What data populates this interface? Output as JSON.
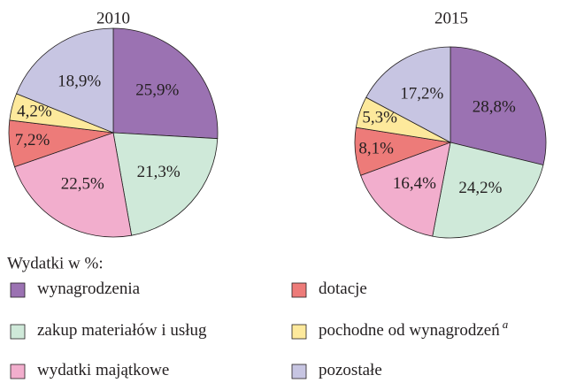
{
  "chart_data": [
    {
      "type": "pie",
      "title": "2010",
      "categories": [
        "wynagrodzenia",
        "zakup materiałów i usług",
        "wydatki majątkowe",
        "dotacje",
        "pochodne od wynagrodzeń",
        "pozostałe"
      ],
      "category_marks": [
        null,
        null,
        null,
        null,
        "a",
        null
      ],
      "values": [
        25.9,
        21.3,
        22.5,
        7.2,
        4.2,
        18.9
      ],
      "value_labels": [
        "25,9%",
        "21,3%",
        "22,5%",
        "7,2%",
        "4,2%",
        "18,9%"
      ],
      "colors": [
        "#9b72b2",
        "#cfe9d9",
        "#f2aecd",
        "#ed7b79",
        "#fde99c",
        "#c7c5e2"
      ],
      "legend_title": "Wydatki w %:"
    },
    {
      "type": "pie",
      "title": "2015",
      "categories": [
        "wynagrodzenia",
        "zakup materiałów i usług",
        "wydatki majątkowe",
        "dotacje",
        "pochodne od wynagrodzeń",
        "pozostałe"
      ],
      "values": [
        28.8,
        24.2,
        16.4,
        8.1,
        5.3,
        17.2
      ],
      "value_labels": [
        "28,8%",
        "24,2%",
        "16,4%",
        "8,1%",
        "5,3%",
        "17,2%"
      ],
      "colors": [
        "#9b72b2",
        "#cfe9d9",
        "#f2aecd",
        "#ed7b79",
        "#fde99c",
        "#c7c5e2"
      ]
    }
  ]
}
